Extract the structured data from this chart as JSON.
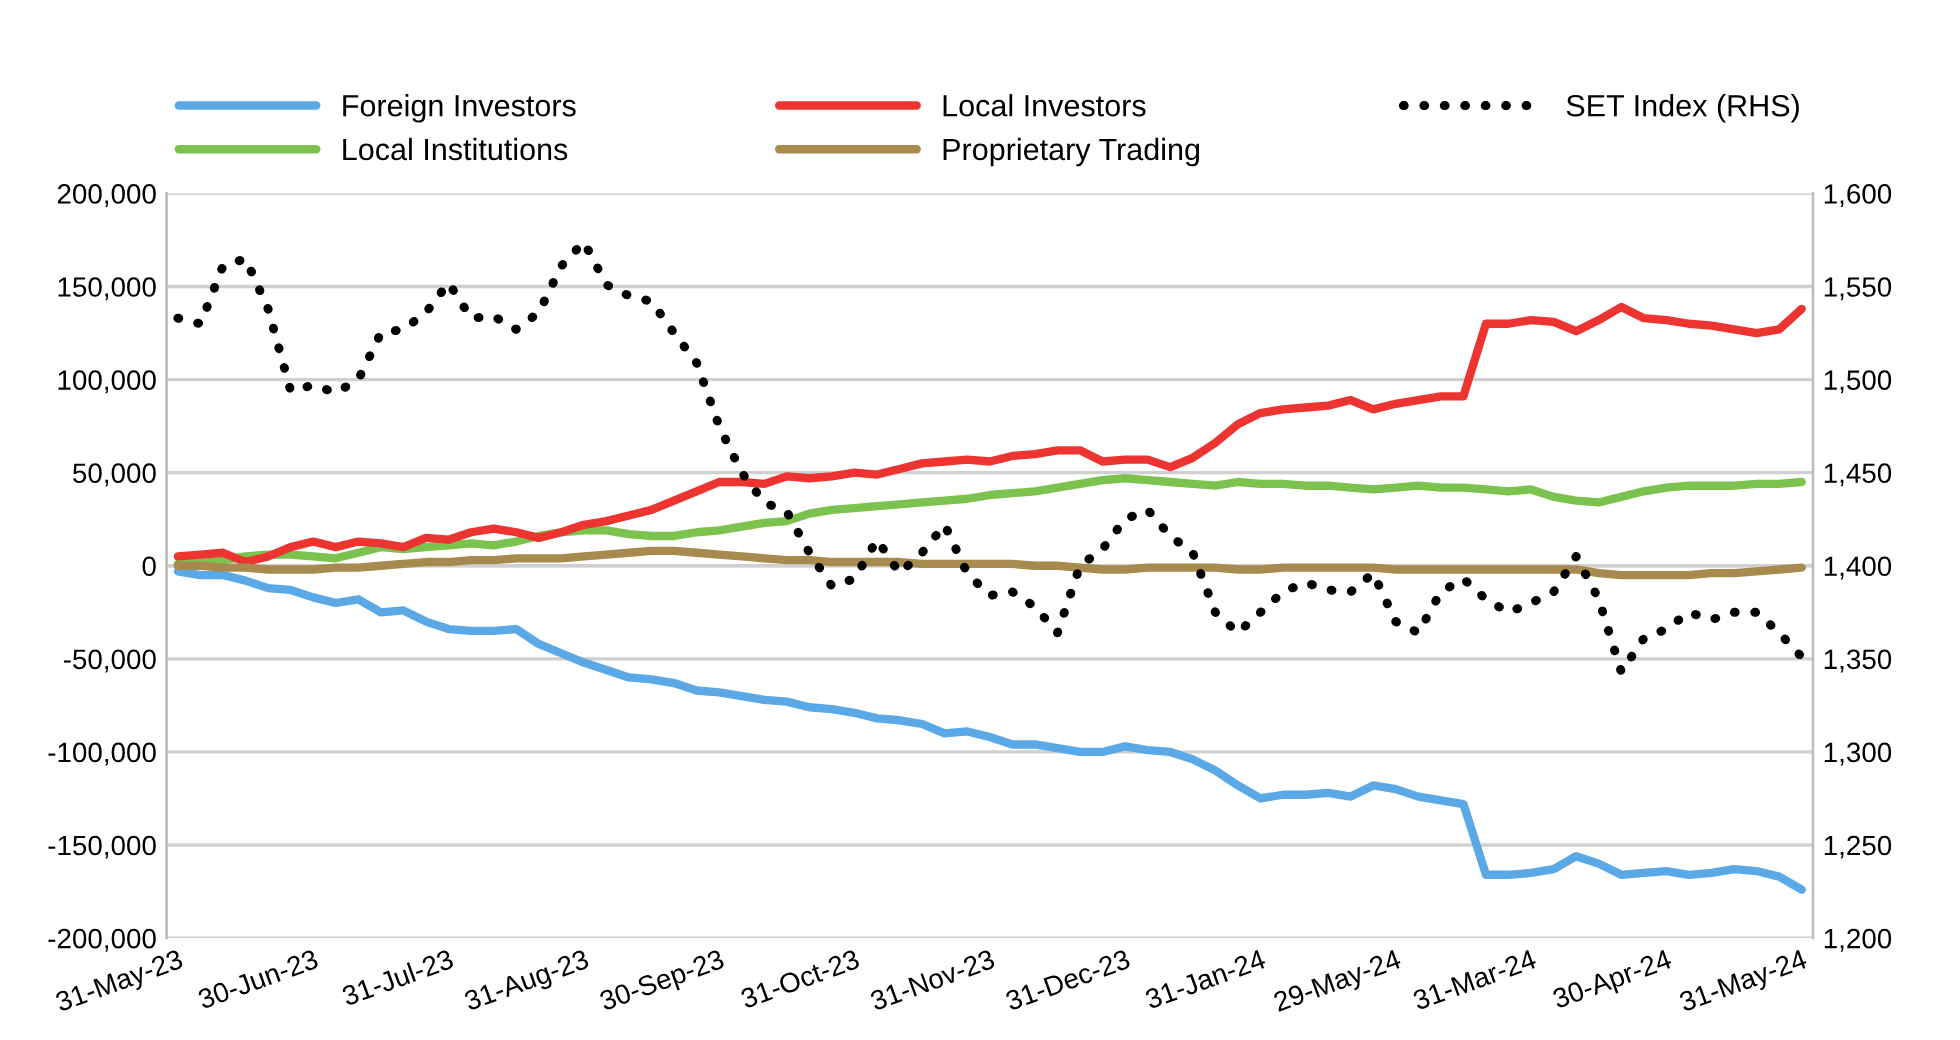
{
  "chart_data": {
    "type": "line",
    "categories": [
      "31-May-23",
      null,
      null,
      null,
      null,
      null,
      "30-Jun-23",
      null,
      null,
      null,
      null,
      null,
      "31-Jul-23",
      null,
      null,
      null,
      null,
      null,
      "31-Aug-23",
      null,
      null,
      null,
      null,
      null,
      "30-Sep-23",
      null,
      null,
      null,
      null,
      null,
      "31-Oct-23",
      null,
      null,
      null,
      null,
      null,
      "31-Nov-23",
      null,
      null,
      null,
      null,
      null,
      "31-Dec-23",
      null,
      null,
      null,
      null,
      null,
      "31-Jan-24",
      null,
      null,
      null,
      null,
      null,
      "29-May-24",
      null,
      null,
      null,
      null,
      null,
      "31-Mar-24",
      null,
      null,
      null,
      null,
      null,
      "30-Apr-24",
      null,
      null,
      null,
      null,
      null,
      "31-May-24"
    ],
    "series": [
      {
        "name": "Foreign Investors",
        "color": "#5aa9e6",
        "values": [
          -3000,
          -5000,
          -5000,
          -8000,
          -12000,
          -13000,
          -17000,
          -20000,
          -18000,
          -25000,
          -24000,
          -30000,
          -34000,
          -35000,
          -35000,
          -34000,
          -42000,
          -47000,
          -52000,
          -56000,
          -60000,
          -61000,
          -63000,
          -67000,
          -68000,
          -70000,
          -72000,
          -73000,
          -76000,
          -77000,
          -79000,
          -82000,
          -83000,
          -85000,
          -90000,
          -89000,
          -92000,
          -96000,
          -96000,
          -98000,
          -100000,
          -100000,
          -97000,
          -99000,
          -100000,
          -104000,
          -110000,
          -118000,
          -125000,
          -123000,
          -123000,
          -122000,
          -124000,
          -118000,
          -120000,
          -124000,
          -126000,
          -128000,
          -166000,
          -166000,
          -165000,
          -163000,
          -156000,
          -160000,
          -166000,
          -165000,
          -164000,
          -166000,
          -165000,
          -163000,
          -164000,
          -167000,
          -174000
        ]
      },
      {
        "name": "Local Institutions",
        "color": "#7cc24e",
        "values": [
          1000,
          2000,
          3000,
          5000,
          6000,
          6000,
          5000,
          4000,
          7000,
          10000,
          9000,
          10000,
          11000,
          12000,
          11000,
          13000,
          16000,
          18000,
          19000,
          19000,
          17000,
          16000,
          16000,
          18000,
          19000,
          21000,
          23000,
          24000,
          28000,
          30000,
          31000,
          32000,
          33000,
          34000,
          35000,
          36000,
          38000,
          39000,
          40000,
          42000,
          44000,
          46000,
          47000,
          46000,
          45000,
          44000,
          43000,
          45000,
          44000,
          44000,
          43000,
          43000,
          42000,
          41000,
          42000,
          43000,
          42000,
          42000,
          41000,
          40000,
          41000,
          37000,
          35000,
          34000,
          37000,
          40000,
          42000,
          43000,
          43000,
          43000,
          44000,
          44000,
          45000
        ]
      },
      {
        "name": "Local Investors",
        "color": "#ee3430",
        "values": [
          5000,
          6000,
          7000,
          2000,
          5000,
          10000,
          13000,
          10000,
          13000,
          12000,
          10000,
          15000,
          14000,
          18000,
          20000,
          18000,
          15000,
          18000,
          22000,
          24000,
          27000,
          30000,
          35000,
          40000,
          45000,
          45000,
          44000,
          48000,
          47000,
          48000,
          50000,
          49000,
          52000,
          55000,
          56000,
          57000,
          56000,
          59000,
          60000,
          62000,
          62000,
          56000,
          57000,
          57000,
          53000,
          58000,
          66000,
          76000,
          82000,
          84000,
          85000,
          86000,
          89000,
          84000,
          87000,
          89000,
          91000,
          91000,
          130000,
          130000,
          132000,
          131000,
          126000,
          132000,
          139000,
          133000,
          132000,
          130000,
          129000,
          127000,
          125000,
          127000,
          138000
        ]
      },
      {
        "name": "Proprietary Trading",
        "color": "#a88a4e",
        "values": [
          0,
          0,
          -1000,
          -1000,
          -2000,
          -2000,
          -2000,
          -1000,
          -1000,
          0,
          1000,
          2000,
          2000,
          3000,
          3000,
          4000,
          4000,
          4000,
          5000,
          6000,
          7000,
          8000,
          8000,
          7000,
          6000,
          5000,
          4000,
          3000,
          3000,
          2000,
          2000,
          2000,
          2000,
          1000,
          1000,
          1000,
          1000,
          1000,
          0,
          0,
          -1000,
          -2000,
          -2000,
          -1000,
          -1000,
          -1000,
          -1000,
          -2000,
          -2000,
          -1000,
          -1000,
          -1000,
          -1000,
          -1000,
          -2000,
          -2000,
          -2000,
          -2000,
          -2000,
          -2000,
          -2000,
          -2000,
          -2000,
          -4000,
          -5000,
          -5000,
          -5000,
          -5000,
          -4000,
          -4000,
          -3000,
          -2000,
          -1000
        ]
      },
      {
        "name": "SET Index (RHS)",
        "color": "#000000",
        "axis": "y2",
        "line_style": "dotted",
        "values": [
          1533,
          1530,
          1561,
          1565,
          1538,
          1494,
          1497,
          1493,
          1500,
          1525,
          1527,
          1536,
          1552,
          1533,
          1534,
          1527,
          1536,
          1561,
          1574,
          1551,
          1545,
          1542,
          1525,
          1509,
          1475,
          1450,
          1434,
          1429,
          1407,
          1389,
          1393,
          1414,
          1396,
          1407,
          1422,
          1396,
          1384,
          1386,
          1378,
          1364,
          1400,
          1409,
          1425,
          1430,
          1416,
          1407,
          1375,
          1364,
          1375,
          1386,
          1391,
          1387,
          1386,
          1396,
          1370,
          1364,
          1386,
          1393,
          1382,
          1375,
          1380,
          1386,
          1405,
          1382,
          1343,
          1361,
          1366,
          1375,
          1371,
          1375,
          1375,
          1364,
          1351
        ]
      }
    ],
    "ylim": [
      -200000,
      200000
    ],
    "yticks": [
      {
        "value": -200000,
        "label": "-200,000"
      },
      {
        "value": -150000,
        "label": "-150,000"
      },
      {
        "value": -100000,
        "label": "-100,000"
      },
      {
        "value": -50000,
        "label": "-50,000"
      },
      0,
      {
        "value": 50000,
        "label": "50,000"
      },
      {
        "value": 100000,
        "label": "100,000"
      },
      {
        "value": 150000,
        "label": "150,000"
      },
      {
        "value": 200000,
        "label": "200,000"
      }
    ],
    "y2lim": [
      1200,
      1600
    ],
    "y2ticks": [
      {
        "value": 1200,
        "label": "1,200"
      },
      {
        "value": 1250,
        "label": "1,250"
      },
      {
        "value": 1300,
        "label": "1,300"
      },
      {
        "value": 1350,
        "label": "1,350"
      },
      {
        "value": 1400,
        "label": "1,400"
      },
      {
        "value": 1450,
        "label": "1,450"
      },
      {
        "value": 1500,
        "label": "1,500"
      },
      {
        "value": 1550,
        "label": "1,550"
      },
      {
        "value": 1600,
        "label": "1,600"
      }
    ],
    "grid": "y",
    "legend": "top",
    "line_style": "solid"
  }
}
